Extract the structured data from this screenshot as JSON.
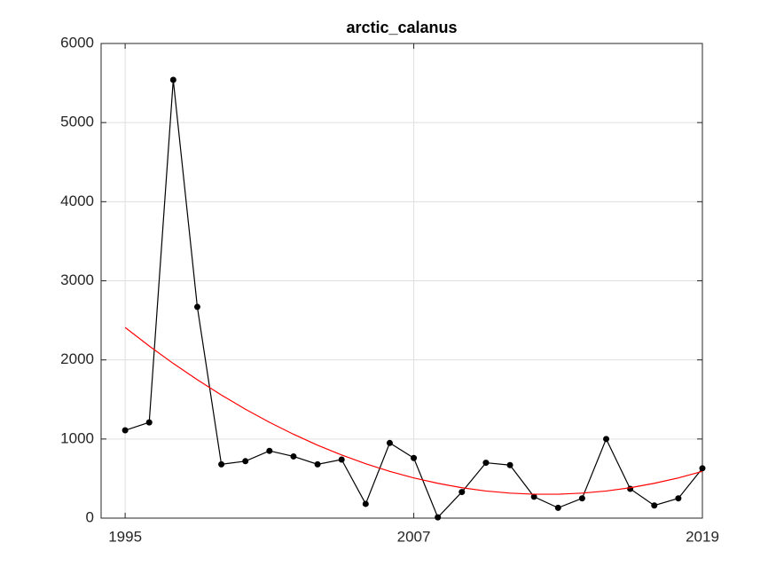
{
  "chart_data": {
    "type": "line",
    "title": "arctic_calanus",
    "x": [
      1995,
      1996,
      1997,
      1998,
      1999,
      2000,
      2001,
      2002,
      2003,
      2004,
      2005,
      2006,
      2007,
      2008,
      2009,
      2010,
      2011,
      2012,
      2013,
      2014,
      2015,
      2016,
      2017,
      2018,
      2019
    ],
    "series": [
      {
        "color": "#000000",
        "marker": true,
        "values": [
          1110,
          1210,
          5540,
          2670,
          680,
          720,
          850,
          780,
          680,
          740,
          180,
          950,
          760,
          10,
          330,
          700,
          670,
          270,
          130,
          250,
          1000,
          370,
          160,
          250,
          630
        ]
      },
      {
        "color": "#ff0000",
        "marker": false,
        "values": [
          2410,
          2176,
          1955,
          1749,
          1556,
          1377,
          1211,
          1060,
          922,
          798,
          688,
          591,
          508,
          440,
          384,
          343,
          316,
          302,
          302,
          316,
          343,
          384,
          440,
          508,
          591
        ]
      }
    ],
    "xlim": [
      1994,
      2019
    ],
    "xticks": [
      1995,
      2007,
      2019
    ],
    "ylim": [
      0,
      6000
    ],
    "yticks": [
      0,
      1000,
      2000,
      3000,
      4000,
      5000,
      6000
    ],
    "grid": true
  }
}
